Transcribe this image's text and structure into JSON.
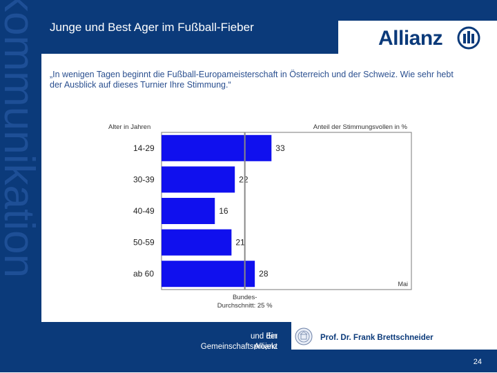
{
  "sidebar": {
    "vertical_word": "kommunikation"
  },
  "header": {
    "title": "Junge und Best Ager im Fußball-Fieber",
    "logo_text": "Allianz"
  },
  "quote": "„In wenigen Tagen beginnt die Fußball-Europameisterschaft in Österreich und der Schweiz. Wie sehr hebt der Ausblick auf dieses Turnier Ihre Stimmung.“",
  "chart_data": {
    "type": "bar",
    "orientation": "horizontal",
    "y_axis_label": "Alter in Jahren",
    "x_axis_label": "Anteil der Stimmungsvollen in %",
    "categories": [
      "14-29",
      "30-39",
      "40-49",
      "50-59",
      "ab 60"
    ],
    "values": [
      33,
      22,
      16,
      21,
      28
    ],
    "reference_line": {
      "value": 25,
      "label_line1": "Bundes-",
      "label_line2": "Durchschnitt: 25 %"
    },
    "note": "Mai",
    "xlim": [
      0,
      75
    ],
    "bar_color": "#1010ee"
  },
  "footer": {
    "project_line1": "Ein Gemeinschaftsprojekt der Universität Hohenheim",
    "project_line2": "und der Allianz Deutschland AG.",
    "author": "Prof. Dr. Frank Brettschneider",
    "page_number": "24"
  },
  "colors": {
    "brand_blue": "#0b3a7a",
    "bar_blue": "#1010ee",
    "reference_line": "#888888"
  }
}
